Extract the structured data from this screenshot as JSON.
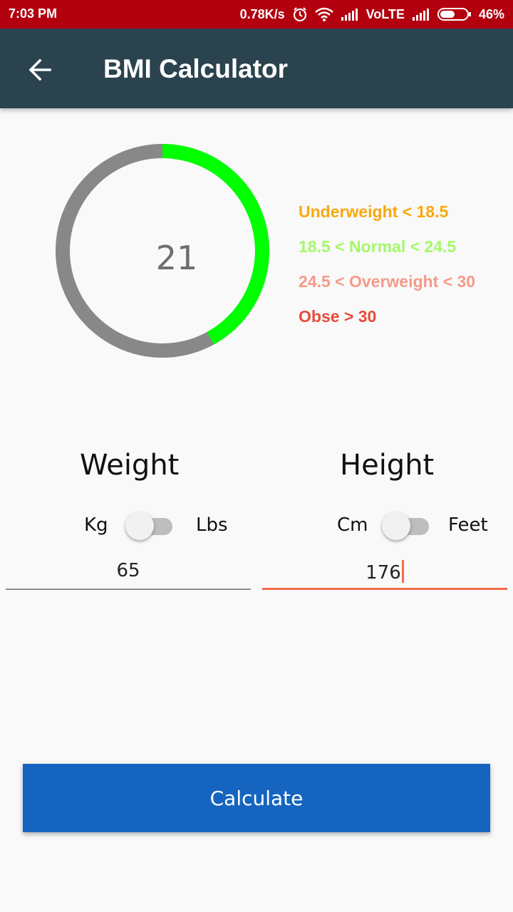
{
  "status_bar": {
    "time": "7:03 PM",
    "speed": "0.78K/s",
    "network": "VoLTE",
    "battery": "46%",
    "icons": [
      "alarm-icon",
      "wifi-icon",
      "signal-icon",
      "signal-icon",
      "battery-icon"
    ]
  },
  "app_bar": {
    "title": "BMI Calculator",
    "back_icon": "arrow-left-icon"
  },
  "gauge": {
    "value": "21",
    "progress": 0.42,
    "colors": {
      "progress": "#00ff00",
      "track": "#888888"
    }
  },
  "legend": [
    {
      "label": "Underweight < 18.5",
      "color": "#f7a80d"
    },
    {
      "label": "18.5 < Normal < 24.5",
      "color": "#a6f76a"
    },
    {
      "label": "24.5 < Overweight < 30",
      "color": "#f59a8a"
    },
    {
      "label": "Obse > 30",
      "color": "#e74c3c"
    }
  ],
  "weight": {
    "title": "Weight",
    "unit_left": "Kg",
    "unit_right": "Lbs",
    "value": "65"
  },
  "height": {
    "title": "Height",
    "unit_left": "Cm",
    "unit_right": "Feet",
    "value": "176"
  },
  "calculate_label": "Calculate"
}
